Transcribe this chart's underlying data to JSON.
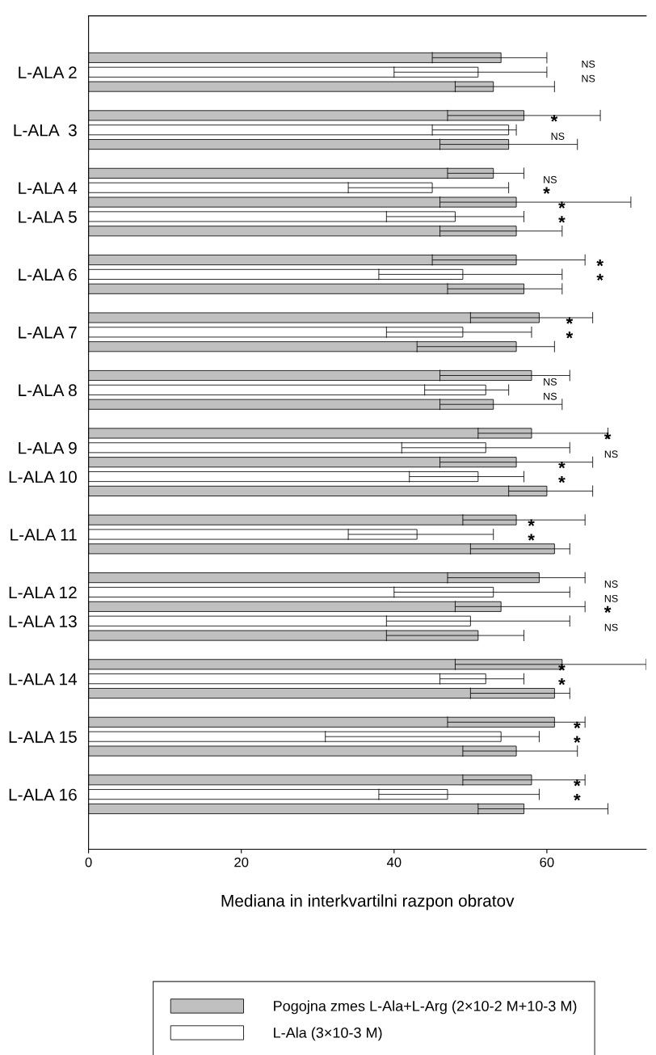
{
  "chart_data": {
    "type": "bar",
    "orientation": "horizontal",
    "xlabel": "Mediana in interkvartilni razpon obratov",
    "categories": [
      null,
      "L-ALA 2",
      null,
      null,
      null,
      "L-ALA  3",
      null,
      null,
      null,
      "L-ALA 4",
      null,
      "L-ALA 5",
      null,
      null,
      null,
      "L-ALA 6",
      null,
      null,
      null,
      "L-ALA 7",
      null,
      null,
      null,
      "L-ALA 8",
      null,
      null,
      null,
      "L-ALA 9",
      null,
      "L-ALA 10",
      null,
      null,
      null,
      "L-ALA 11",
      null,
      null,
      null,
      "L-ALA 12",
      null,
      "L-ALA 13",
      null,
      null,
      null,
      "L-ALA 14",
      null,
      null,
      null,
      "L-ALA 15",
      null,
      null,
      null,
      "L-ALA 16",
      null
    ],
    "series": [
      {
        "name": "Pogojna zmes L-Ala+L-Arg (2×10-2 M+10-3 M)",
        "color": "#c0c0c0",
        "values": [
          54,
          null,
          53,
          null,
          57,
          null,
          55,
          null,
          53,
          null,
          56,
          null,
          56,
          null,
          56,
          null,
          57,
          null,
          59,
          null,
          56,
          null,
          58,
          null,
          53,
          null,
          58,
          null,
          56,
          null,
          60,
          null,
          56,
          null,
          61,
          null,
          59,
          null,
          54,
          null,
          51,
          null,
          62,
          null,
          61,
          null,
          61,
          null,
          56,
          null,
          58,
          null,
          57
        ],
        "errors": [
          [
            45,
            60
          ],
          null,
          [
            48,
            61
          ],
          null,
          [
            47,
            67
          ],
          null,
          [
            46,
            64
          ],
          null,
          [
            47,
            57
          ],
          null,
          [
            46,
            71
          ],
          null,
          [
            46,
            62
          ],
          null,
          [
            45,
            65
          ],
          null,
          [
            47,
            62
          ],
          null,
          [
            50,
            66
          ],
          null,
          [
            43,
            61
          ],
          null,
          [
            46,
            63
          ],
          null,
          [
            46,
            62
          ],
          null,
          [
            51,
            68
          ],
          null,
          [
            46,
            66
          ],
          null,
          [
            55,
            66
          ],
          null,
          [
            49,
            65
          ],
          null,
          [
            50,
            63
          ],
          null,
          [
            47,
            65
          ],
          null,
          [
            48,
            65
          ],
          null,
          [
            39,
            57
          ],
          null,
          [
            48,
            73
          ],
          null,
          [
            50,
            63
          ],
          null,
          [
            47,
            65
          ],
          null,
          [
            49,
            64
          ],
          null,
          [
            49,
            65
          ],
          null,
          [
            51,
            68
          ]
        ]
      },
      {
        "name": "L-Ala (3×10-3 M)",
        "color": "#ffffff",
        "values": [
          null,
          51,
          null,
          null,
          null,
          55,
          null,
          null,
          null,
          45,
          null,
          48,
          null,
          null,
          null,
          49,
          null,
          null,
          null,
          49,
          null,
          null,
          null,
          52,
          null,
          null,
          null,
          52,
          null,
          51,
          null,
          null,
          null,
          43,
          null,
          null,
          null,
          53,
          null,
          50,
          null,
          null,
          null,
          52,
          null,
          null,
          null,
          54,
          null,
          null,
          null,
          47,
          null
        ],
        "errors": [
          null,
          [
            40,
            60
          ],
          null,
          null,
          null,
          [
            45,
            56
          ],
          null,
          null,
          null,
          [
            34,
            55
          ],
          null,
          [
            39,
            57
          ],
          null,
          null,
          null,
          [
            38,
            62
          ],
          null,
          null,
          null,
          [
            39,
            58
          ],
          null,
          null,
          null,
          [
            44,
            55
          ],
          null,
          null,
          null,
          [
            41,
            63
          ],
          null,
          [
            42,
            57
          ],
          null,
          null,
          null,
          [
            34,
            53
          ],
          null,
          null,
          null,
          [
            40,
            63
          ],
          null,
          [
            39,
            63
          ],
          null,
          null,
          null,
          [
            46,
            57
          ],
          null,
          null,
          null,
          [
            31,
            59
          ],
          null,
          null,
          null,
          [
            38,
            59
          ],
          null
        ]
      }
    ],
    "xlim": [
      0,
      73
    ],
    "xticks": [
      0,
      20,
      40,
      60
    ],
    "legend": "bottom",
    "annotations": [
      "NS",
      "NS",
      "*",
      "NS",
      "NS",
      "*",
      "*",
      "*",
      "*",
      "*",
      "*",
      "*",
      "NS",
      "NS",
      "*",
      "NS",
      "*",
      "*",
      "*",
      "*",
      "NS",
      "NS",
      "*",
      "NS",
      "*",
      "*",
      "*",
      "*",
      "*",
      "*"
    ]
  }
}
